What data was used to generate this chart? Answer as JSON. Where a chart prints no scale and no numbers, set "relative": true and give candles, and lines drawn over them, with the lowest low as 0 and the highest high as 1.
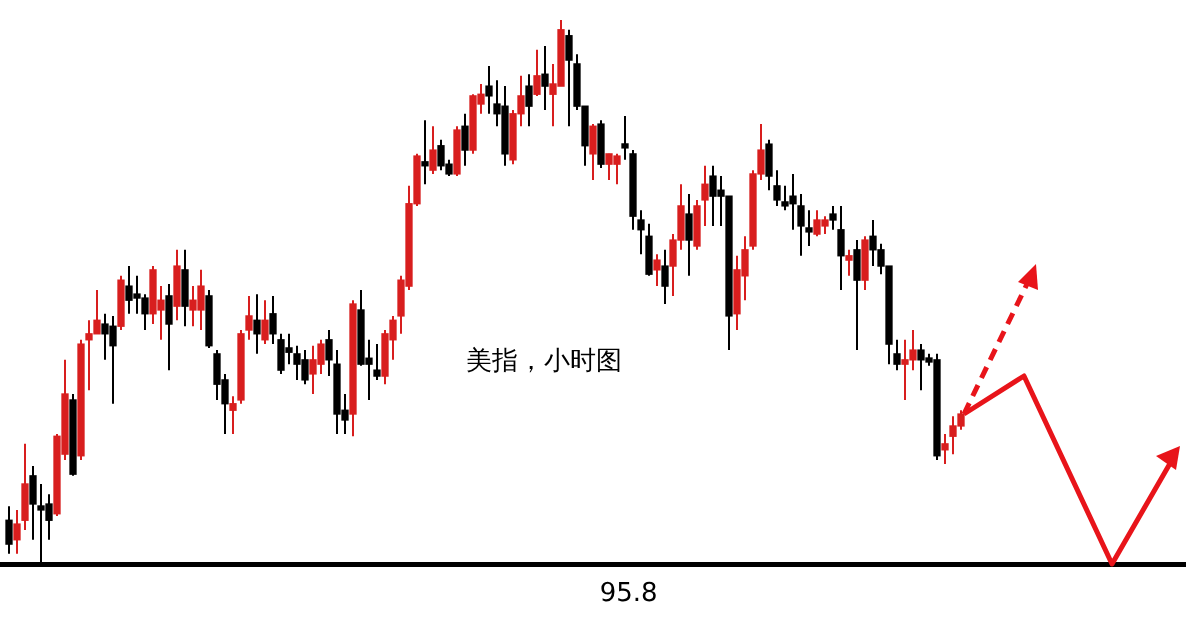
{
  "chart_data": {
    "type": "candlestick",
    "relative": true,
    "categories": [
      null,
      null,
      null,
      null,
      null,
      null,
      null,
      null,
      null,
      null,
      null,
      null,
      null,
      null,
      null,
      null,
      null,
      null,
      null,
      null,
      null,
      null,
      null,
      null,
      null,
      null,
      null,
      null,
      null,
      null,
      null,
      null,
      null,
      null,
      null,
      null,
      null,
      null,
      null,
      null,
      null,
      null,
      null,
      null,
      null,
      null,
      null,
      null,
      null,
      null,
      null,
      null,
      null,
      null,
      null,
      null,
      null,
      null,
      null,
      null,
      null,
      null,
      null,
      null,
      null,
      null,
      null,
      null,
      null,
      null,
      null,
      null,
      null,
      null,
      null,
      null,
      null,
      null,
      null,
      null,
      null,
      null,
      null,
      null,
      null,
      null,
      null,
      null,
      null,
      null,
      null,
      null,
      null,
      null,
      null,
      null,
      null,
      null,
      null,
      null,
      null,
      null,
      null,
      null,
      null,
      null,
      null,
      null,
      null,
      null,
      null,
      null,
      null,
      null,
      null,
      null,
      null,
      null,
      null,
      null
    ],
    "ohlc": [
      [
        0.077,
        0.103,
        0.015,
        0.033
      ],
      [
        0.041,
        0.096,
        0.015,
        0.07
      ],
      [
        0.077,
        0.218,
        0.059,
        0.144
      ],
      [
        0.159,
        0.177,
        0.041,
        0.107
      ],
      [
        0.103,
        0.144,
        0,
        0.096
      ],
      [
        0.107,
        0.125,
        0.041,
        0.077
      ],
      [
        0.089,
        0.236,
        0.085,
        0.232
      ],
      [
        0.199,
        0.373,
        0.188,
        0.31
      ],
      [
        0.299,
        0.31,
        0.159,
        0.162
      ],
      [
        0.196,
        0.41,
        0.188,
        0.402
      ],
      [
        0.41,
        0.446,
        0.317,
        0.421
      ],
      [
        0.421,
        0.502,
        0.421,
        0.446
      ],
      [
        0.439,
        0.458,
        0.373,
        0.421
      ],
      [
        0.435,
        0.454,
        0.292,
        0.399
      ],
      [
        0.435,
        0.528,
        0.428,
        0.52
      ],
      [
        0.509,
        0.546,
        0.458,
        0.483
      ],
      [
        0.494,
        0.528,
        0.458,
        0.487
      ],
      [
        0.487,
        0.494,
        0.428,
        0.458
      ],
      [
        0.458,
        0.546,
        0.439,
        0.539
      ],
      [
        0.465,
        0.509,
        0.41,
        0.483
      ],
      [
        0.491,
        0.513,
        0.354,
        0.439
      ],
      [
        0.472,
        0.576,
        0.446,
        0.546
      ],
      [
        0.539,
        0.576,
        0.435,
        0.472
      ],
      [
        0.465,
        0.509,
        0.435,
        0.483
      ],
      [
        0.465,
        0.539,
        0.428,
        0.509
      ],
      [
        0.491,
        0.502,
        0.395,
        0.399
      ],
      [
        0.384,
        0.391,
        0.299,
        0.328
      ],
      [
        0.336,
        0.347,
        0.236,
        0.292
      ],
      [
        0.28,
        0.306,
        0.236,
        0.292
      ],
      [
        0.299,
        0.428,
        0.292,
        0.421
      ],
      [
        0.428,
        0.491,
        0.41,
        0.454
      ],
      [
        0.446,
        0.494,
        0.384,
        0.421
      ],
      [
        0.41,
        0.483,
        0.402,
        0.446
      ],
      [
        0.458,
        0.491,
        0.402,
        0.421
      ],
      [
        0.41,
        0.421,
        0.347,
        0.354
      ],
      [
        0.395,
        0.421,
        0.365,
        0.387
      ],
      [
        0.384,
        0.399,
        0.336,
        0.365
      ],
      [
        0.373,
        0.391,
        0.328,
        0.336
      ],
      [
        0.347,
        0.399,
        0.31,
        0.373
      ],
      [
        0.365,
        0.41,
        0.347,
        0.402
      ],
      [
        0.41,
        0.428,
        0.343,
        0.373
      ],
      [
        0.365,
        0.391,
        0.236,
        0.273
      ],
      [
        0.28,
        0.31,
        0.236,
        0.262
      ],
      [
        0.273,
        0.483,
        0.232,
        0.476
      ],
      [
        0.465,
        0.502,
        0.362,
        0.365
      ],
      [
        0.376,
        0.41,
        0.299,
        0.365
      ],
      [
        0.354,
        0.402,
        0.336,
        0.343
      ],
      [
        0.343,
        0.428,
        0.328,
        0.421
      ],
      [
        0.41,
        0.454,
        0.373,
        0.446
      ],
      [
        0.454,
        0.528,
        0.421,
        0.52
      ],
      [
        0.509,
        0.694,
        0.502,
        0.661
      ],
      [
        0.661,
        0.753,
        0.657,
        0.749
      ],
      [
        0.738,
        0.815,
        0.697,
        0.731
      ],
      [
        0.723,
        0.804,
        0.716,
        0.76
      ],
      [
        0.768,
        0.779,
        0.723,
        0.731
      ],
      [
        0.734,
        0.742,
        0.712,
        0.716
      ],
      [
        0.716,
        0.804,
        0.712,
        0.797
      ],
      [
        0.804,
        0.827,
        0.731,
        0.76
      ],
      [
        0.76,
        0.863,
        0.753,
        0.86
      ],
      [
        0.845,
        0.882,
        0.827,
        0.863
      ],
      [
        0.878,
        0.915,
        0.827,
        0.86
      ],
      [
        0.845,
        0.889,
        0.804,
        0.827
      ],
      [
        0.841,
        0.878,
        0.731,
        0.753
      ],
      [
        0.742,
        0.834,
        0.734,
        0.827
      ],
      [
        0.827,
        0.897,
        0.804,
        0.86
      ],
      [
        0.878,
        0.9,
        0.804,
        0.841
      ],
      [
        0.863,
        0.945,
        0.86,
        0.897
      ],
      [
        0.9,
        0.952,
        0.834,
        0.878
      ],
      [
        0.863,
        0.919,
        0.804,
        0.882
      ],
      [
        0.878,
        1,
        0.878,
        0.982
      ],
      [
        0.971,
        0.982,
        0.804,
        0.926
      ],
      [
        0.919,
        0.937,
        0.834,
        0.841
      ],
      [
        0.841,
        0.841,
        0.731,
        0.768
      ],
      [
        0.753,
        0.808,
        0.705,
        0.804
      ],
      [
        0.808,
        0.815,
        0.727,
        0.734
      ],
      [
        0.734,
        0.753,
        0.705,
        0.753
      ],
      [
        0.734,
        0.753,
        0.697,
        0.749
      ],
      [
        0.771,
        0.823,
        0.742,
        0.764
      ],
      [
        0.753,
        0.76,
        0.613,
        0.638
      ],
      [
        0.631,
        0.649,
        0.568,
        0.613
      ],
      [
        0.601,
        0.624,
        0.528,
        0.531
      ],
      [
        0.539,
        0.568,
        0.509,
        0.557
      ],
      [
        0.546,
        0.576,
        0.476,
        0.509
      ],
      [
        0.546,
        0.605,
        0.491,
        0.594
      ],
      [
        0.594,
        0.697,
        0.576,
        0.657
      ],
      [
        0.642,
        0.679,
        0.528,
        0.594
      ],
      [
        0.583,
        0.668,
        0.576,
        0.657
      ],
      [
        0.668,
        0.731,
        0.62,
        0.697
      ],
      [
        0.712,
        0.731,
        0.62,
        0.675
      ],
      [
        0.686,
        0.712,
        0.62,
        0.675
      ],
      [
        0.675,
        0.675,
        0.391,
        0.454
      ],
      [
        0.458,
        0.565,
        0.428,
        0.539
      ],
      [
        0.528,
        0.601,
        0.483,
        0.576
      ],
      [
        0.583,
        0.723,
        0.576,
        0.716
      ],
      [
        0.716,
        0.808,
        0.705,
        0.76
      ],
      [
        0.771,
        0.779,
        0.686,
        0.712
      ],
      [
        0.694,
        0.723,
        0.657,
        0.668
      ],
      [
        0.664,
        0.694,
        0.649,
        0.657
      ],
      [
        0.675,
        0.716,
        0.613,
        0.661
      ],
      [
        0.657,
        0.679,
        0.565,
        0.62
      ],
      [
        0.616,
        0.649,
        0.583,
        0.609
      ],
      [
        0.605,
        0.649,
        0.601,
        0.631
      ],
      [
        0.62,
        0.638,
        0.605,
        0.631
      ],
      [
        0.642,
        0.657,
        0.613,
        0.631
      ],
      [
        0.613,
        0.657,
        0.502,
        0.565
      ],
      [
        0.557,
        0.576,
        0.528,
        0.565
      ],
      [
        0.576,
        0.594,
        0.391,
        0.52
      ],
      [
        0.52,
        0.601,
        0.502,
        0.594
      ],
      [
        0.601,
        0.631,
        0.546,
        0.576
      ],
      [
        0.576,
        0.587,
        0.531,
        0.546
      ],
      [
        0.546,
        0.546,
        0.365,
        0.402
      ],
      [
        0.384,
        0.41,
        0.354,
        0.365
      ],
      [
        0.365,
        0.41,
        0.299,
        0.373
      ],
      [
        0.373,
        0.428,
        0.354,
        0.391
      ],
      [
        0.391,
        0.402,
        0.317,
        0.373
      ],
      [
        0.376,
        0.384,
        0.362,
        0.369
      ],
      [
        0.373,
        0.384,
        0.188,
        0.196
      ],
      [
        0.207,
        0.236,
        0.181,
        0.218
      ],
      [
        0.232,
        0.269,
        0.199,
        0.251
      ],
      [
        0.251,
        0.28,
        0.244,
        0.273
      ]
    ],
    "colors": [
      "#000000",
      "#d81e1e",
      "#d81e1e",
      "#000000",
      "#000000",
      "#000000",
      "#d81e1e",
      "#d81e1e",
      "#000000",
      "#d81e1e",
      "#d81e1e",
      "#d81e1e",
      "#000000",
      "#000000",
      "#d81e1e",
      "#000000",
      "#000000",
      "#000000",
      "#d81e1e",
      "#d81e1e",
      "#000000",
      "#d81e1e",
      "#000000",
      "#d81e1e",
      "#d81e1e",
      "#000000",
      "#000000",
      "#000000",
      "#d81e1e",
      "#d81e1e",
      "#d81e1e",
      "#000000",
      "#d81e1e",
      "#000000",
      "#000000",
      "#000000",
      "#000000",
      "#000000",
      "#d81e1e",
      "#d81e1e",
      "#000000",
      "#000000",
      "#000000",
      "#d81e1e",
      "#000000",
      "#000000",
      "#000000",
      "#d81e1e",
      "#d81e1e",
      "#d81e1e",
      "#d81e1e",
      "#d81e1e",
      "#000000",
      "#d81e1e",
      "#000000",
      "#000000",
      "#d81e1e",
      "#000000",
      "#d81e1e",
      "#d81e1e",
      "#000000",
      "#000000",
      "#000000",
      "#d81e1e",
      "#d81e1e",
      "#000000",
      "#d81e1e",
      "#000000",
      "#d81e1e",
      "#d81e1e",
      "#000000",
      "#000000",
      "#000000",
      "#d81e1e",
      "#000000",
      "#d81e1e",
      "#d81e1e",
      "#000000",
      "#000000",
      "#000000",
      "#000000",
      "#d81e1e",
      "#000000",
      "#d81e1e",
      "#d81e1e",
      "#000000",
      "#d81e1e",
      "#d81e1e",
      "#000000",
      "#000000",
      "#000000",
      "#d81e1e",
      "#d81e1e",
      "#d81e1e",
      "#d81e1e",
      "#000000",
      "#000000",
      "#000000",
      "#000000",
      "#000000",
      "#000000",
      "#d81e1e",
      "#d81e1e",
      "#000000",
      "#000000",
      "#d81e1e",
      "#000000",
      "#d81e1e",
      "#000000",
      "#000000",
      "#000000",
      "#000000",
      "#d81e1e",
      "#d81e1e",
      "#000000",
      "#000000",
      "#000000",
      "#d81e1e",
      "#d81e1e",
      "#d81e1e"
    ],
    "annotations": [
      "美指，小时图",
      "95.8"
    ]
  }
}
